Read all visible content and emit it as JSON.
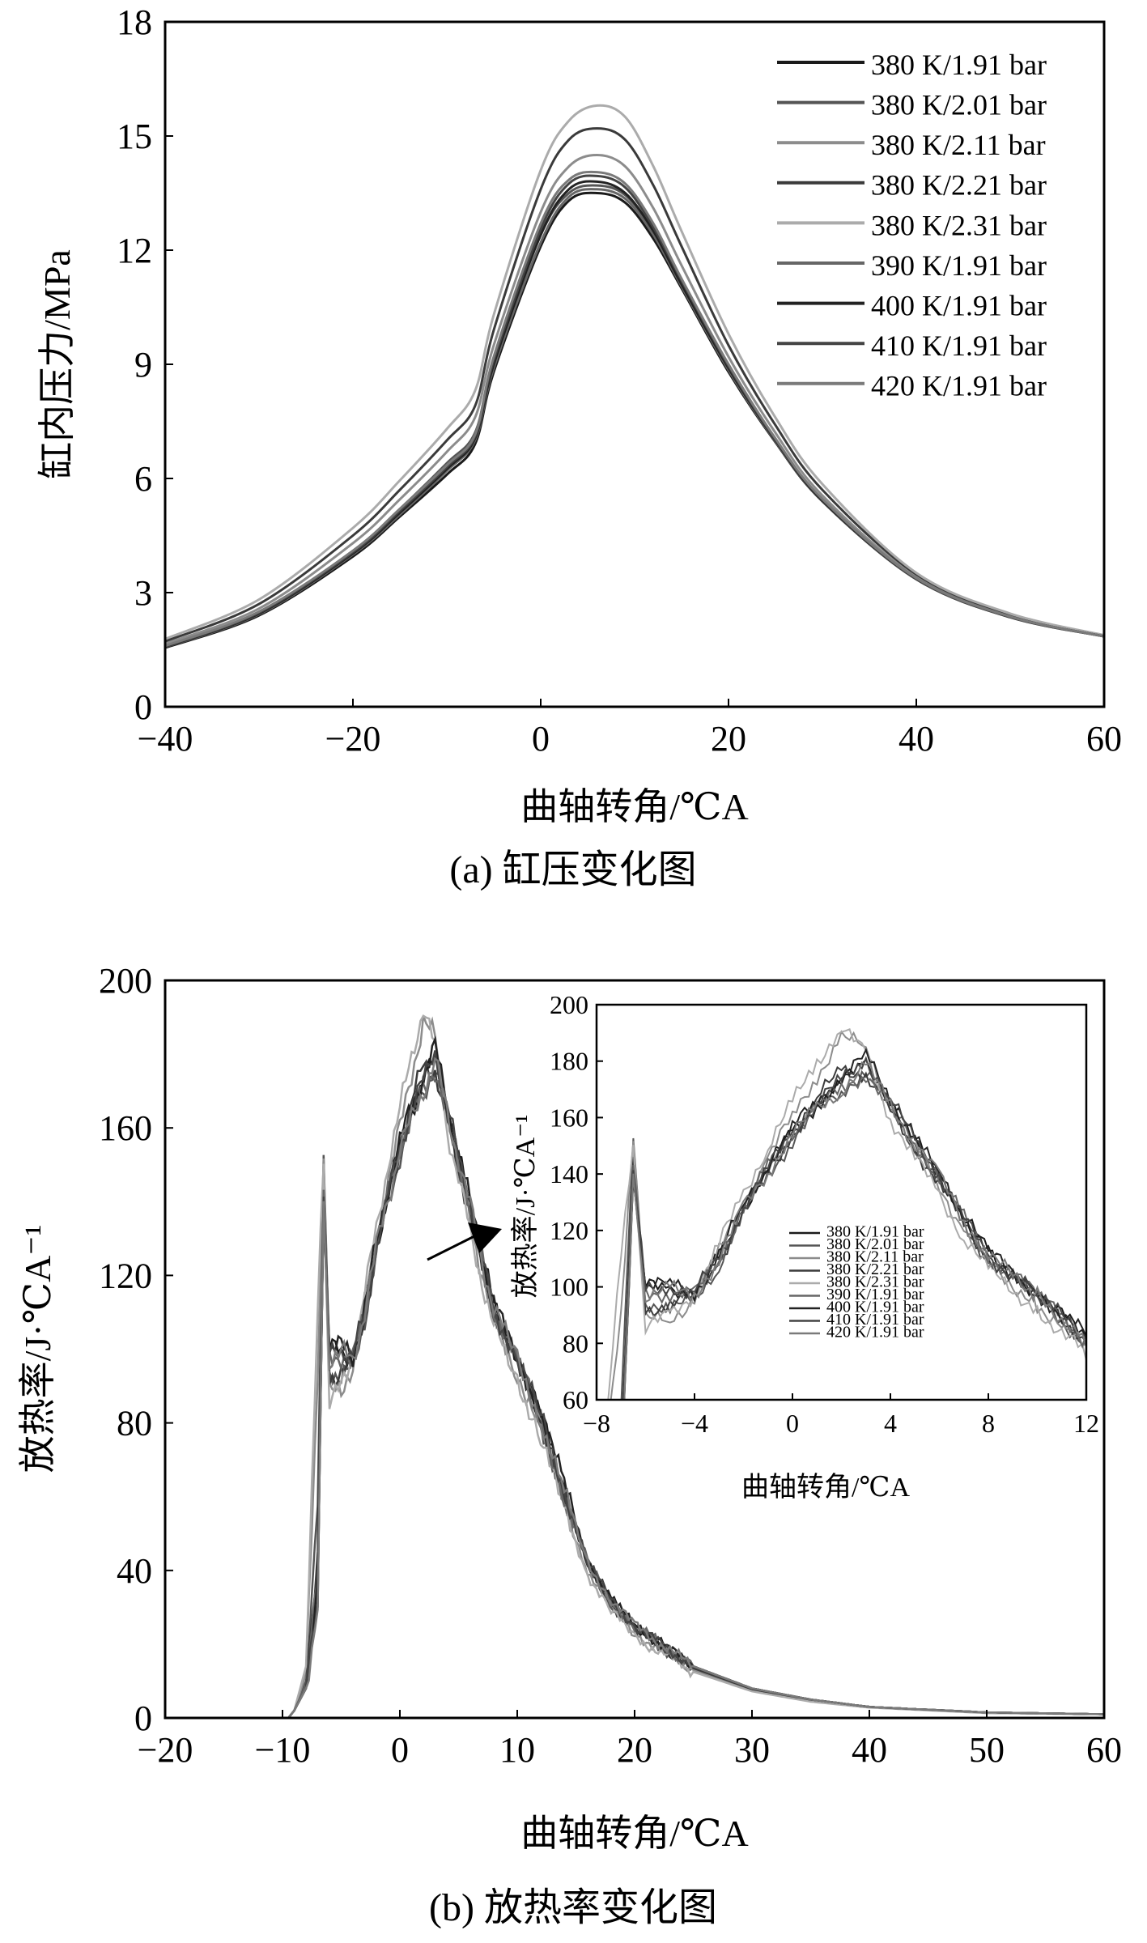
{
  "chart_data": [
    {
      "type": "line",
      "caption": "(a) 缸压变化图",
      "xlabel": "曲轴转角/℃A",
      "ylabel": "缸内压力/MPa",
      "xlim": [
        -40,
        60
      ],
      "ylim": [
        0,
        18
      ],
      "xticks": [
        -40,
        -20,
        0,
        20,
        40,
        60
      ],
      "yticks": [
        0,
        3,
        6,
        9,
        12,
        15,
        18
      ],
      "xtick_labels": [
        "−40",
        "−20",
        "0",
        "20",
        "40",
        "60"
      ],
      "ytick_labels": [
        "0",
        "3",
        "6",
        "9",
        "12",
        "15",
        "18"
      ],
      "legend_position": "top-right",
      "x": [
        -40,
        -30,
        -20,
        -15,
        -10,
        -7,
        -5,
        0,
        3,
        6,
        9,
        12,
        15,
        20,
        25,
        30,
        40,
        50,
        60
      ],
      "series": [
        {
          "name": "380 K/1.91 bar",
          "color": "#1a1a1a",
          "values": [
            1.55,
            2.4,
            3.95,
            5.0,
            6.1,
            6.9,
            8.8,
            12.1,
            13.3,
            13.5,
            13.25,
            12.3,
            11.0,
            8.8,
            6.95,
            5.4,
            3.35,
            2.35,
            1.85
          ]
        },
        {
          "name": "380 K/2.01 bar",
          "color": "#555555",
          "values": [
            1.6,
            2.48,
            4.1,
            5.2,
            6.4,
            7.2,
            9.1,
            12.4,
            13.5,
            13.7,
            13.45,
            12.5,
            11.15,
            8.9,
            7.0,
            5.45,
            3.38,
            2.38,
            1.85
          ]
        },
        {
          "name": "380 K/2.11 bar",
          "color": "#8c8c8c",
          "values": [
            1.66,
            2.58,
            4.3,
            5.45,
            6.7,
            7.6,
            9.5,
            13.0,
            14.2,
            14.5,
            14.2,
            13.1,
            11.6,
            9.2,
            7.2,
            5.55,
            3.42,
            2.4,
            1.86
          ]
        },
        {
          "name": "380 K/2.21 bar",
          "color": "#3a3a3a",
          "values": [
            1.72,
            2.7,
            4.5,
            5.7,
            7.0,
            7.9,
            9.9,
            13.6,
            14.9,
            15.2,
            14.9,
            13.7,
            12.1,
            9.5,
            7.4,
            5.7,
            3.48,
            2.43,
            1.87
          ]
        },
        {
          "name": "380 K/2.31 bar",
          "color": "#ababab",
          "values": [
            1.78,
            2.82,
            4.7,
            5.95,
            7.3,
            8.3,
            10.3,
            14.1,
            15.4,
            15.8,
            15.5,
            14.2,
            12.5,
            9.8,
            7.6,
            5.85,
            3.52,
            2.45,
            1.88
          ]
        },
        {
          "name": "390 K/1.91 bar",
          "color": "#666666",
          "values": [
            1.57,
            2.43,
            4.0,
            5.05,
            6.2,
            7.0,
            8.9,
            12.2,
            13.4,
            13.6,
            13.35,
            12.4,
            11.05,
            8.85,
            6.97,
            5.42,
            3.36,
            2.36,
            1.85
          ]
        },
        {
          "name": "400 K/1.91 bar",
          "color": "#222222",
          "values": [
            1.58,
            2.45,
            4.03,
            5.1,
            6.25,
            7.05,
            9.0,
            12.4,
            13.6,
            13.8,
            13.5,
            12.5,
            11.1,
            8.9,
            7.0,
            5.43,
            3.37,
            2.37,
            1.85
          ]
        },
        {
          "name": "410 K/1.91 bar",
          "color": "#444444",
          "values": [
            1.59,
            2.47,
            4.06,
            5.15,
            6.3,
            7.1,
            9.1,
            12.55,
            13.75,
            13.95,
            13.65,
            12.6,
            11.2,
            8.95,
            7.02,
            5.45,
            3.38,
            2.37,
            1.85
          ]
        },
        {
          "name": "420 K/1.91 bar",
          "color": "#7a7a7a",
          "values": [
            1.6,
            2.5,
            4.1,
            5.2,
            6.35,
            7.15,
            9.2,
            12.7,
            13.85,
            14.05,
            13.75,
            12.7,
            11.25,
            9.0,
            7.05,
            5.46,
            3.38,
            2.37,
            1.85
          ]
        }
      ]
    },
    {
      "type": "line",
      "caption": "(b) 放热率变化图",
      "xlabel": "曲轴转角/℃A",
      "ylabel": "放热率/J·℃A⁻¹",
      "xlim": [
        -20,
        60
      ],
      "ylim": [
        0,
        200
      ],
      "xticks": [
        -20,
        -10,
        0,
        10,
        20,
        30,
        40,
        50,
        60
      ],
      "yticks": [
        0,
        40,
        80,
        120,
        160,
        200
      ],
      "xtick_labels": [
        "−20",
        "−10",
        "0",
        "10",
        "20",
        "30",
        "40",
        "50",
        "60"
      ],
      "ytick_labels": [
        "0",
        "40",
        "80",
        "120",
        "160",
        "200"
      ],
      "x": [
        -20,
        -9.5,
        -9,
        -8,
        -7,
        -6.5,
        -6,
        -5,
        -4,
        -3,
        -2,
        -1,
        0,
        1,
        2,
        3,
        4,
        5,
        6,
        7,
        8,
        10,
        12,
        14,
        16,
        18,
        20,
        25,
        30,
        35,
        40,
        50,
        60
      ],
      "series": [
        {
          "name": "380 K/1.91 bar",
          "color": "#1a1a1a",
          "values": [
            0,
            0,
            2,
            8,
            30,
            140,
            100,
            100,
            98,
            110,
            128,
            142,
            155,
            165,
            172,
            180,
            166,
            152,
            140,
            125,
            112,
            98,
            82,
            62,
            42,
            32,
            25,
            14,
            8,
            5,
            3,
            1.5,
            1
          ]
        },
        {
          "name": "380 K/2.01 bar",
          "color": "#555555",
          "values": [
            0,
            0,
            2,
            10,
            60,
            150,
            95,
            92,
            95,
            108,
            126,
            140,
            152,
            162,
            170,
            176,
            163,
            150,
            138,
            122,
            110,
            96,
            80,
            60,
            41,
            31,
            24,
            13.5,
            7.8,
            4.8,
            3,
            1.5,
            1
          ]
        },
        {
          "name": "380 K/2.11 bar",
          "color": "#8c8c8c",
          "values": [
            0,
            0,
            2,
            12,
            90,
            155,
            88,
            88,
            96,
            112,
            130,
            146,
            160,
            175,
            188,
            185,
            165,
            150,
            136,
            120,
            108,
            94,
            78,
            58,
            40,
            30,
            23,
            13,
            7.5,
            4.6,
            2.9,
            1.4,
            1
          ]
        },
        {
          "name": "380 K/2.21 bar",
          "color": "#3a3a3a",
          "values": [
            0,
            0,
            2,
            9,
            45,
            145,
            92,
            94,
            97,
            109,
            127,
            141,
            154,
            166,
            178,
            175,
            162,
            149,
            137,
            122,
            110,
            96,
            81,
            60,
            41,
            31,
            24,
            13.5,
            7.8,
            4.8,
            3,
            1.5,
            1
          ]
        },
        {
          "name": "380 K/2.31 bar",
          "color": "#ababab",
          "values": [
            0,
            0,
            2,
            14,
            110,
            150,
            85,
            90,
            98,
            115,
            133,
            150,
            165,
            180,
            192,
            182,
            160,
            146,
            132,
            118,
            106,
            92,
            76,
            56,
            39,
            29,
            22,
            12.5,
            7.2,
            4.4,
            2.8,
            1.3,
            1
          ]
        },
        {
          "name": "390 K/1.91 bar",
          "color": "#666666",
          "values": [
            0,
            0,
            2,
            9,
            40,
            142,
            98,
            98,
            97,
            110,
            128,
            142,
            155,
            164,
            170,
            176,
            164,
            151,
            139,
            124,
            111,
            97,
            81,
            61,
            42,
            32,
            25,
            14,
            8,
            5,
            3,
            1.5,
            1
          ]
        },
        {
          "name": "400 K/1.91 bar",
          "color": "#222222",
          "values": [
            0,
            0,
            2,
            8,
            35,
            140,
            100,
            101,
            98,
            111,
            129,
            143,
            156,
            166,
            174,
            182,
            167,
            152,
            140,
            125,
            112,
            98,
            83,
            63,
            43,
            32,
            25,
            14,
            8,
            5,
            3,
            1.5,
            1
          ]
        },
        {
          "name": "410 K/1.91 bar",
          "color": "#444444",
          "values": [
            0,
            0,
            2,
            8,
            32,
            141,
            99,
            100,
            98,
            110,
            128,
            142,
            155,
            165,
            173,
            181,
            166,
            152,
            140,
            124,
            111,
            97,
            82,
            62,
            42,
            32,
            25,
            14,
            8,
            5,
            3,
            1.5,
            1
          ]
        },
        {
          "name": "420 K/1.91 bar",
          "color": "#7a7a7a",
          "values": [
            0,
            0,
            2,
            8,
            30,
            138,
            97,
            99,
            97,
            110,
            128,
            141,
            154,
            163,
            170,
            178,
            165,
            151,
            139,
            124,
            111,
            97,
            81,
            61,
            42,
            32,
            25,
            14,
            8,
            5,
            3,
            1.5,
            1
          ]
        }
      ],
      "inset": {
        "xlabel": "曲轴转角/℃A",
        "ylabel": "放热率/J·℃A⁻¹",
        "xlim": [
          -8,
          12
        ],
        "ylim": [
          60,
          200
        ],
        "xticks": [
          -8,
          -4,
          0,
          4,
          8,
          12
        ],
        "yticks": [
          60,
          80,
          100,
          120,
          140,
          160,
          180,
          200
        ],
        "xtick_labels": [
          "−8",
          "−4",
          "0",
          "4",
          "8",
          "12"
        ],
        "ytick_labels": [
          "60",
          "80",
          "100",
          "120",
          "140",
          "160",
          "180",
          "200"
        ],
        "legend_position": "bottom-center"
      }
    }
  ]
}
